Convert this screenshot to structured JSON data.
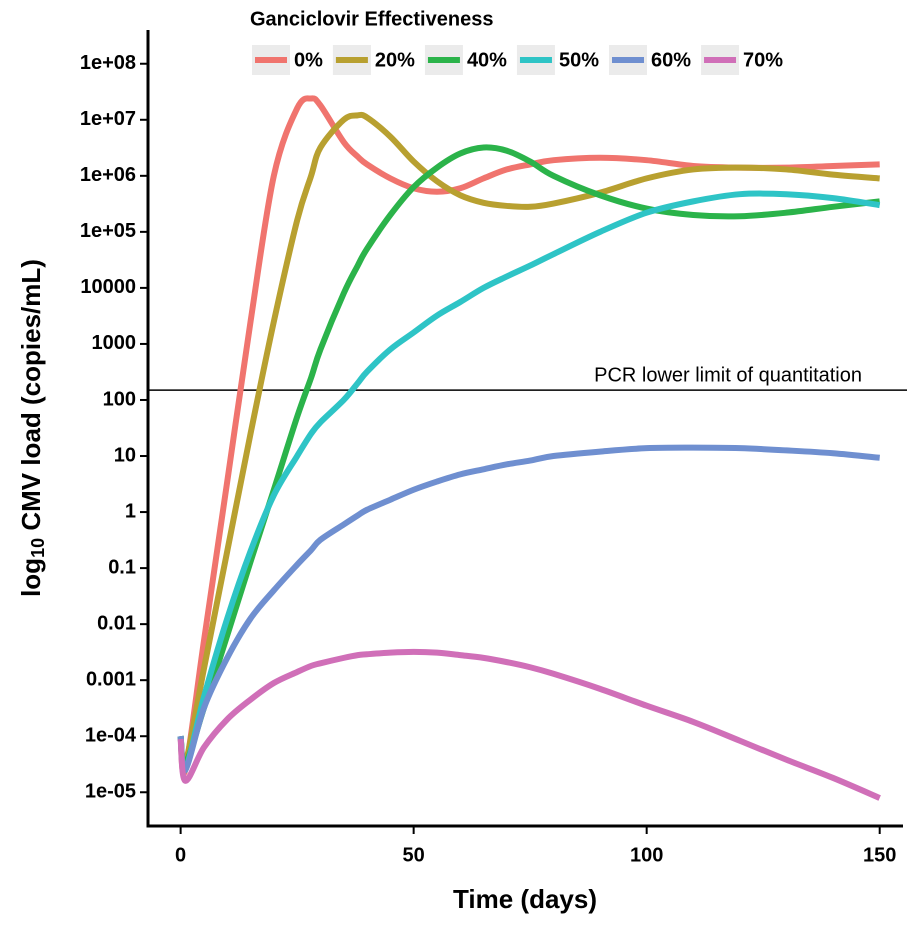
{
  "chart_data": {
    "type": "line",
    "legend_title": "Ganciclovir Effectiveness",
    "xlabel": "Time (days)",
    "ylabel": {
      "base": "log",
      "subscript": "10",
      "rest": " CMV load (copies/mL)"
    },
    "log_y": true,
    "xlim": [
      -7,
      155
    ],
    "xticks": [
      0,
      50,
      100,
      150
    ],
    "ylim": [
      2.5e-06,
      400000000
    ],
    "yticks": [
      {
        "value": 1e-05,
        "label": "1e-05"
      },
      {
        "value": 0.0001,
        "label": "1e-04"
      },
      0.001,
      0.01,
      0.1,
      1,
      10,
      100,
      1000,
      10000,
      {
        "value": 100000,
        "label": "1e+05"
      },
      {
        "value": 1000000,
        "label": "1e+06"
      },
      {
        "value": 10000000,
        "label": "1e+07"
      },
      {
        "value": 100000000,
        "label": "1e+08"
      }
    ],
    "reference_line": {
      "value": 150,
      "label": "PCR lower limit of quantitation"
    },
    "x": [
      0,
      1,
      5,
      10,
      15,
      20,
      25,
      28,
      30,
      35,
      38,
      40,
      45,
      50,
      55,
      60,
      65,
      70,
      75,
      80,
      90,
      100,
      110,
      120,
      130,
      140,
      150
    ],
    "series": [
      {
        "name": "0%",
        "color": "#F0746E",
        "values": [
          0.0001,
          2.5e-05,
          0.005,
          3.5,
          2500,
          1000000,
          16000000,
          24000000,
          18000000,
          4000000,
          2200000,
          1600000,
          900000,
          600000,
          520000,
          600000,
          900000,
          1300000,
          1600000,
          1900000,
          2100000,
          1900000,
          1500000,
          1400000,
          1400000,
          1500000,
          1600000
        ]
      },
      {
        "name": "20%",
        "color": "#B8A030",
        "values": [
          0.0001,
          3.2e-05,
          0.0016,
          0.2,
          25,
          2500,
          160000,
          1000000,
          3200000,
          10000000,
          12000000,
          11000000,
          5000000,
          1800000,
          800000,
          450000,
          330000,
          290000,
          280000,
          320000,
          500000,
          900000,
          1300000,
          1400000,
          1300000,
          1050000,
          900000
        ]
      },
      {
        "name": "40%",
        "color": "#2BB34A",
        "values": [
          0.0001,
          3.2e-05,
          0.00032,
          0.0063,
          0.13,
          2.5,
          50,
          250,
          800,
          8000,
          25000,
          50000,
          200000,
          630000,
          1400000,
          2500000,
          3200000,
          2800000,
          1800000,
          1000000,
          450000,
          260000,
          200000,
          190000,
          220000,
          280000,
          350000
        ]
      },
      {
        "name": "50%",
        "color": "#2EC4C6",
        "values": [
          0.0001,
          2.5e-05,
          0.0005,
          0.0126,
          0.2,
          2,
          10,
          25,
          40,
          100,
          200,
          320,
          800,
          1600,
          3200,
          5600,
          10000,
          16000,
          25000,
          40000,
          100000,
          220000,
          350000,
          470000,
          470000,
          400000,
          300000
        ]
      },
      {
        "name": "60%",
        "color": "#6F8FD0",
        "values": [
          0.0001,
          2.5e-05,
          0.00032,
          0.0025,
          0.0126,
          0.04,
          0.115,
          0.21,
          0.32,
          0.6,
          0.87,
          1.1,
          1.66,
          2.5,
          3.5,
          4.7,
          5.8,
          7.1,
          8.3,
          10,
          12,
          13.8,
          14.1,
          13.8,
          12.6,
          11.2,
          9.3
        ]
      },
      {
        "name": "70%",
        "color": "#D06FB8",
        "values": [
          8.9e-05,
          1.6e-05,
          6.3e-05,
          0.0002,
          0.00045,
          0.00089,
          0.0014,
          0.0018,
          0.002,
          0.0025,
          0.0028,
          0.0029,
          0.0031,
          0.0032,
          0.0031,
          0.0028,
          0.0025,
          0.0021,
          0.0017,
          0.0013,
          0.0007,
          0.00035,
          0.00018,
          8.3e-05,
          3.8e-05,
          1.8e-05,
          7.9e-06
        ]
      }
    ]
  }
}
